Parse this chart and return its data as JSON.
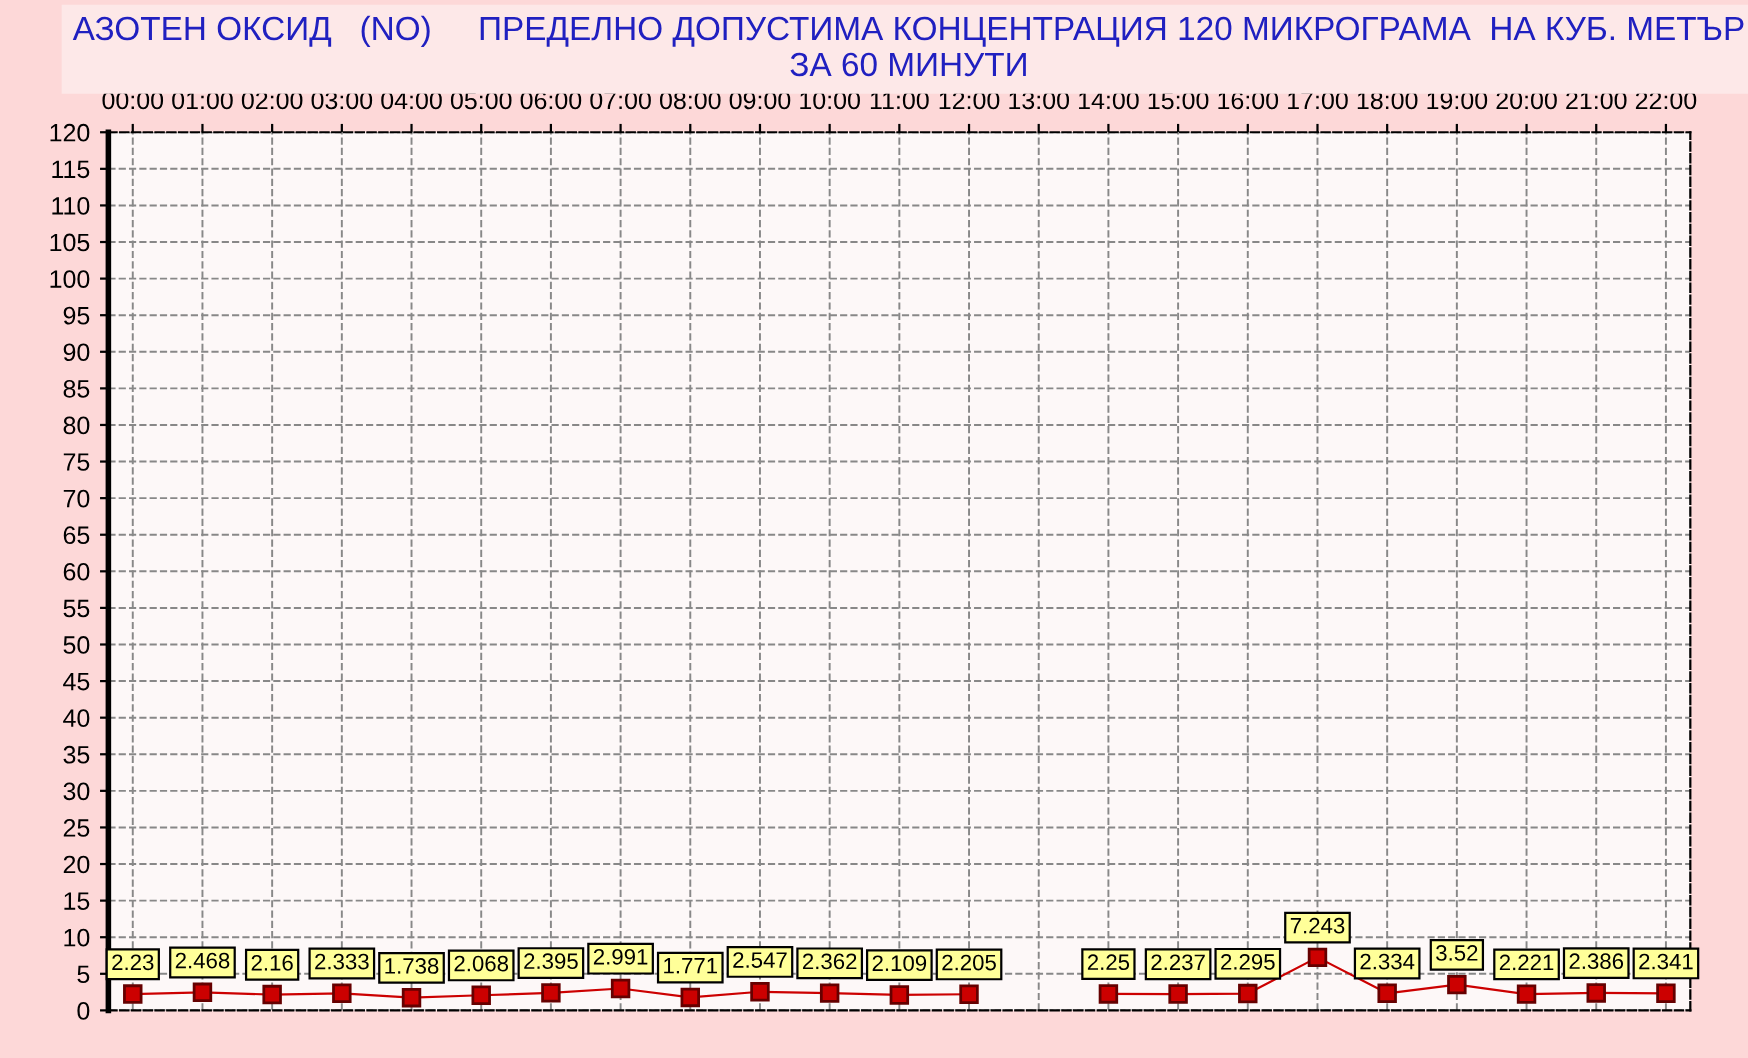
{
  "chart_data": {
    "type": "line",
    "title": "АЗОТЕН ОКСИД   (NO)     ПРЕДЕЛНО ДОПУСТИМА КОНЦЕНТРАЦИЯ 120 МИКРОГРАМА  НА КУБ. МЕТЪР\nЗА 60 МИНУТИ",
    "categories": [
      "00:00",
      "01:00",
      "02:00",
      "03:00",
      "04:00",
      "05:00",
      "06:00",
      "07:00",
      "08:00",
      "09:00",
      "10:00",
      "11:00",
      "12:00",
      "13:00",
      "14:00",
      "15:00",
      "16:00",
      "17:00",
      "18:00",
      "19:00",
      "20:00",
      "21:00",
      "22:00"
    ],
    "series": [
      {
        "color": "#cc0000",
        "values": [
          2.23,
          2.468,
          2.16,
          2.333,
          1.738,
          2.068,
          2.395,
          2.991,
          1.771,
          2.547,
          2.362,
          2.109,
          2.205,
          null,
          2.25,
          2.237,
          2.295,
          7.243,
          2.334,
          3.52,
          2.221,
          2.386,
          2.341
        ]
      }
    ],
    "ylim": [
      0,
      120
    ],
    "yticks": [
      0,
      5,
      10,
      15,
      20,
      25,
      30,
      35,
      40,
      45,
      50,
      55,
      60,
      65,
      70,
      75,
      80,
      85,
      90,
      95,
      100,
      105,
      110,
      115,
      120
    ],
    "grid": true,
    "marker": "square",
    "line_style": "solid",
    "data_labels": true,
    "legend": false
  }
}
